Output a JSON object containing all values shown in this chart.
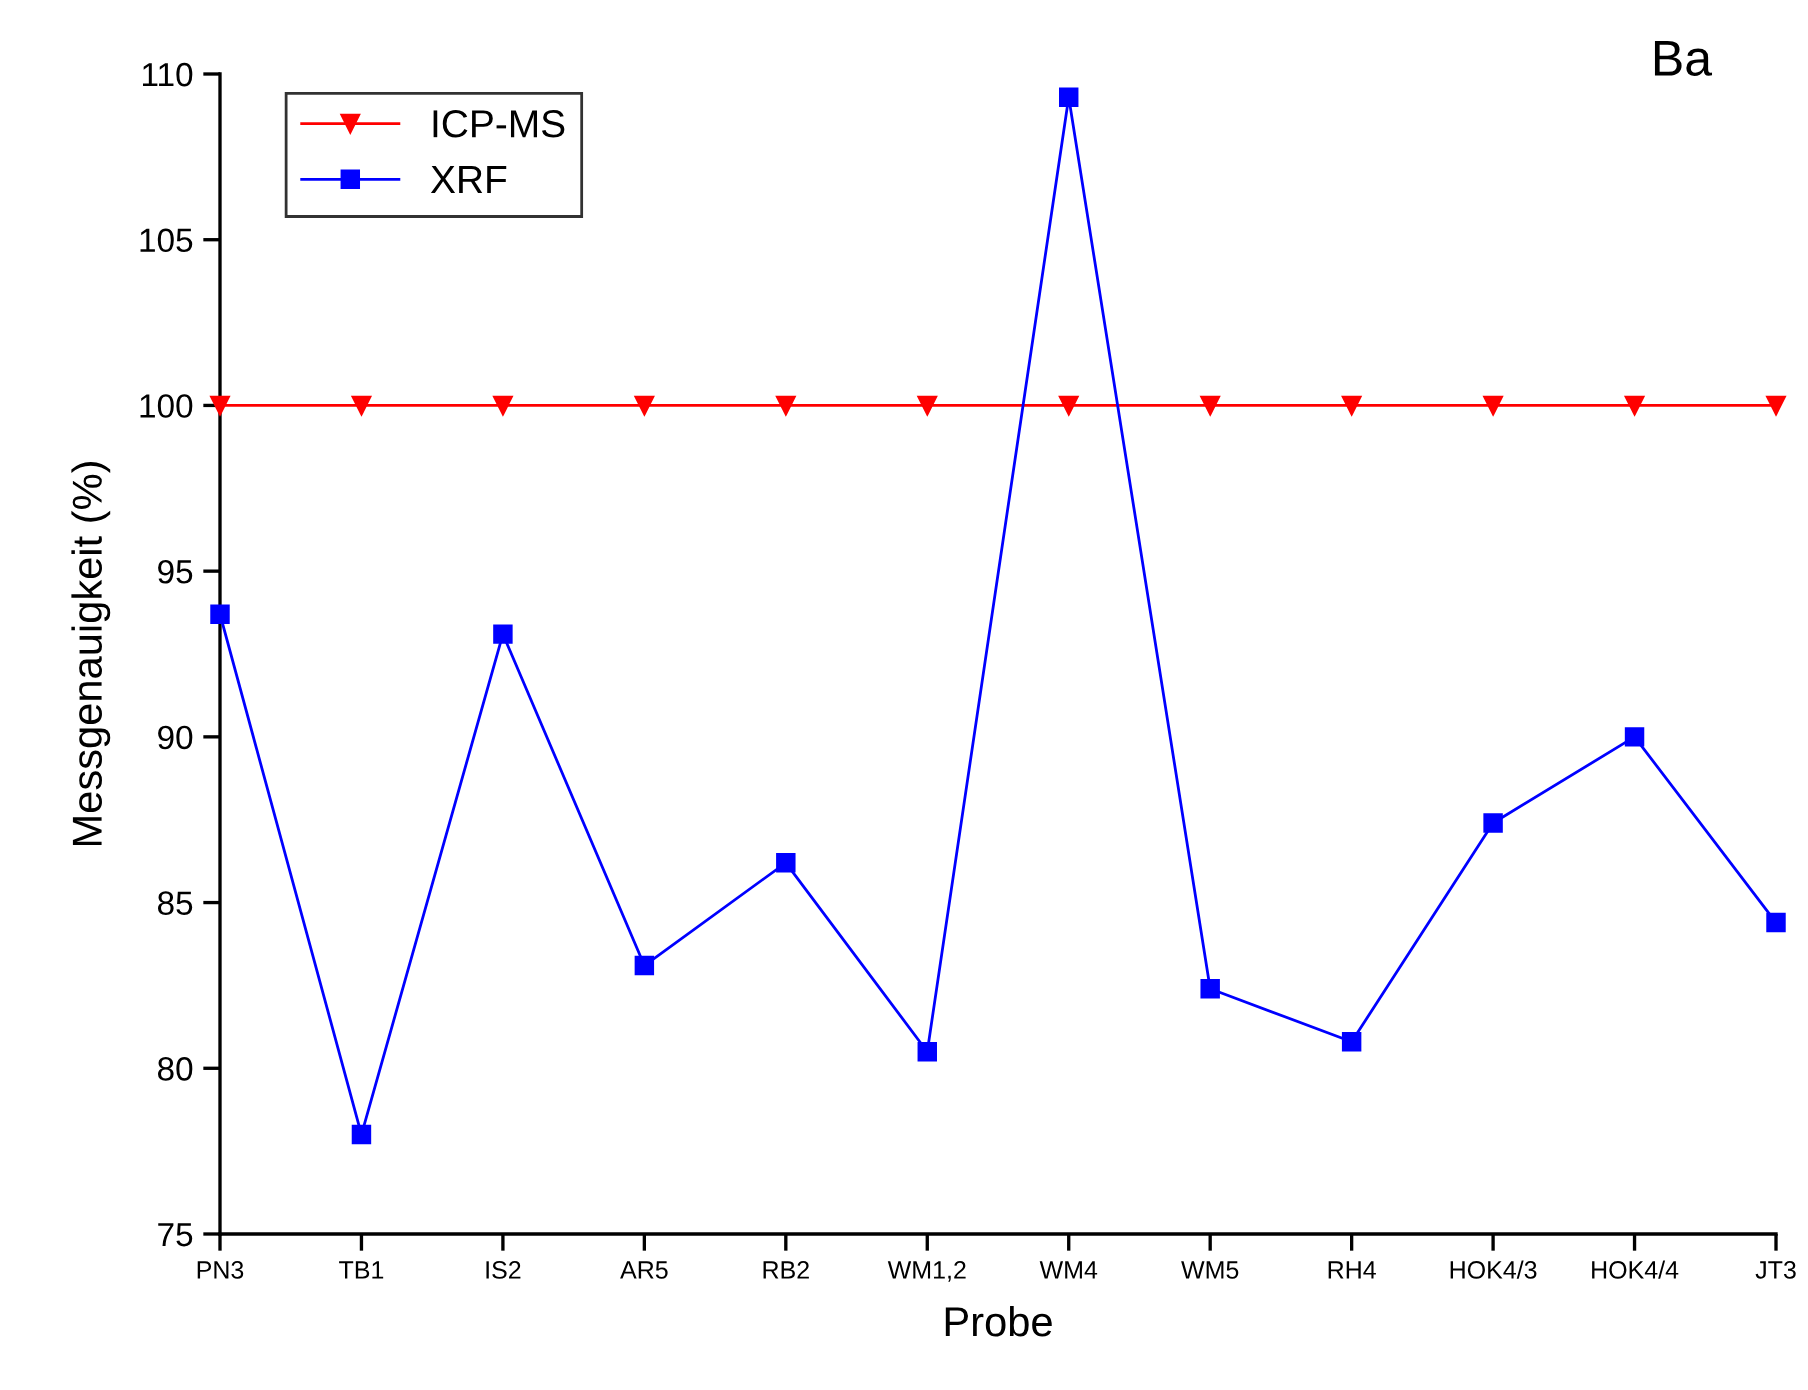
{
  "chart_data": {
    "type": "line",
    "xlabel": "Probe",
    "ylabel": "Messgenauigkeit (%)",
    "categories": [
      "PN3",
      "TB1",
      "IS2",
      "AR5",
      "RB2",
      "WM1,2",
      "WM4",
      "WM5",
      "RH4",
      "HOK4/3",
      "HOK4/4",
      "JT3"
    ],
    "series": [
      {
        "name": "ICP-MS",
        "color": "#ff0000",
        "marker": "triangle",
        "values": [
          100,
          100,
          100,
          100,
          100,
          100,
          100,
          100,
          100,
          100,
          100,
          100
        ]
      },
      {
        "name": "XRF",
        "color": "#0000ff",
        "marker": "square",
        "values": [
          93.7,
          78.0,
          93.1,
          83.1,
          86.2,
          80.5,
          109.3,
          82.4,
          80.8,
          87.4,
          90.0,
          84.4
        ]
      }
    ],
    "ylim": [
      75,
      110
    ],
    "yticks": [
      75,
      80,
      85,
      90,
      95,
      100,
      105,
      110
    ],
    "grid": false,
    "legend": "top left",
    "line_style": "solid",
    "annotations": [
      "Ba"
    ]
  }
}
